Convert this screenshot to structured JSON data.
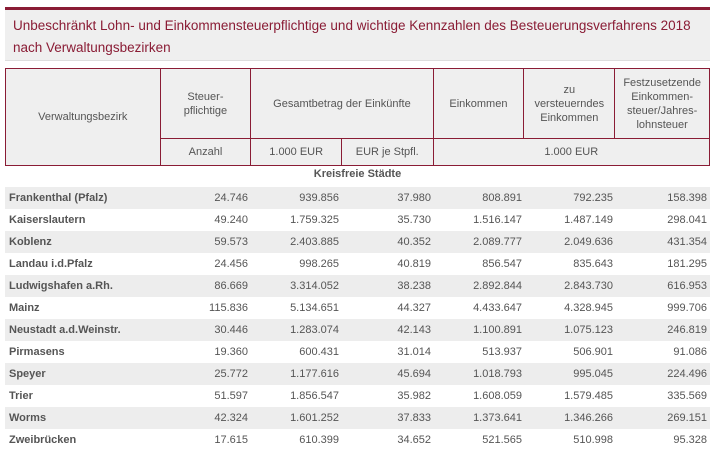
{
  "title": "Unbeschränkt Lohn- und Einkommensteuerpflichtige und wichtige Kennzahlen des Besteuerungsverfahrens 2018 nach Verwaltungsbezirken",
  "header": {
    "col_bezirk": "Verwaltungsbezirk",
    "col_steuerpflichtige": "Steuer-pflichtige",
    "col_gesamtbetrag": "Gesamtbetrag der Einkünfte",
    "col_einkommen": "Einkommen",
    "col_zu_versteuern": "zu versteuerndes Einkommen",
    "col_festzusetzende": "Festzusetzende Einkommen-steuer/Jahres-lohnsteuer",
    "unit_anzahl": "Anzahl",
    "unit_1000eur": "1.000 EUR",
    "unit_eur_je": "EUR je Stpfl.",
    "unit_1000eur_span": "1.000 EUR"
  },
  "section_label": "Kreisfreie Städte",
  "rows": [
    {
      "name": "Frankenthal (Pfalz)",
      "values": [
        "24.746",
        "939.856",
        "37.980",
        "808.891",
        "792.235",
        "158.398"
      ]
    },
    {
      "name": "Kaiserslautern",
      "values": [
        "49.240",
        "1.759.325",
        "35.730",
        "1.516.147",
        "1.487.149",
        "298.041"
      ]
    },
    {
      "name": "Koblenz",
      "values": [
        "59.573",
        "2.403.885",
        "40.352",
        "2.089.777",
        "2.049.636",
        "431.354"
      ]
    },
    {
      "name": "Landau i.d.Pfalz",
      "values": [
        "24.456",
        "998.265",
        "40.819",
        "856.547",
        "835.643",
        "181.295"
      ]
    },
    {
      "name": "Ludwigshafen a.Rh.",
      "values": [
        "86.669",
        "3.314.052",
        "38.238",
        "2.892.844",
        "2.843.730",
        "616.953"
      ]
    },
    {
      "name": "Mainz",
      "values": [
        "115.836",
        "5.134.651",
        "44.327",
        "4.433.647",
        "4.328.945",
        "999.706"
      ]
    },
    {
      "name": "Neustadt a.d.Weinstr.",
      "values": [
        "30.446",
        "1.283.074",
        "42.143",
        "1.100.891",
        "1.075.123",
        "246.819"
      ]
    },
    {
      "name": "Pirmasens",
      "values": [
        "19.360",
        "600.431",
        "31.014",
        "513.937",
        "506.901",
        "91.086"
      ]
    },
    {
      "name": "Speyer",
      "values": [
        "25.772",
        "1.177.616",
        "45.694",
        "1.018.793",
        "995.045",
        "224.496"
      ]
    },
    {
      "name": "Trier",
      "values": [
        "51.597",
        "1.856.547",
        "35.982",
        "1.608.059",
        "1.579.485",
        "335.569"
      ]
    },
    {
      "name": "Worms",
      "values": [
        "42.324",
        "1.601.252",
        "37.833",
        "1.373.641",
        "1.346.266",
        "269.151"
      ]
    },
    {
      "name": "Zweibrücken",
      "values": [
        "17.615",
        "610.399",
        "34.652",
        "521.565",
        "510.998",
        "95.328"
      ]
    }
  ]
}
